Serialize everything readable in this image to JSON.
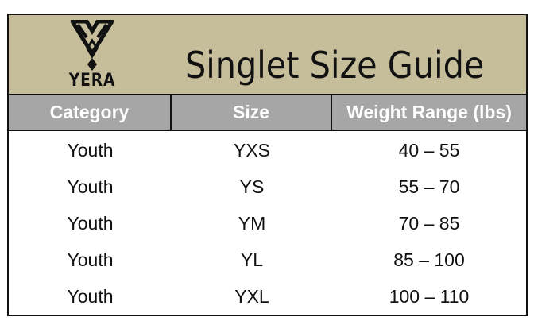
{
  "brand": {
    "name": "YERA",
    "logo_icon": "yera-logo-icon"
  },
  "title": "Singlet Size Guide",
  "colors": {
    "banner": "#c6bd9a",
    "header_row": "#a6a6a6"
  },
  "table": {
    "headers": [
      "Category",
      "Size",
      "Weight Range (lbs)"
    ],
    "rows": [
      [
        "Youth",
        "YXS",
        "40 – 55"
      ],
      [
        "Youth",
        "YS",
        "55 – 70"
      ],
      [
        "Youth",
        "YM",
        "70 – 85"
      ],
      [
        "Youth",
        "YL",
        "85 – 100"
      ],
      [
        "Youth",
        "YXL",
        "100 – 110"
      ]
    ]
  }
}
